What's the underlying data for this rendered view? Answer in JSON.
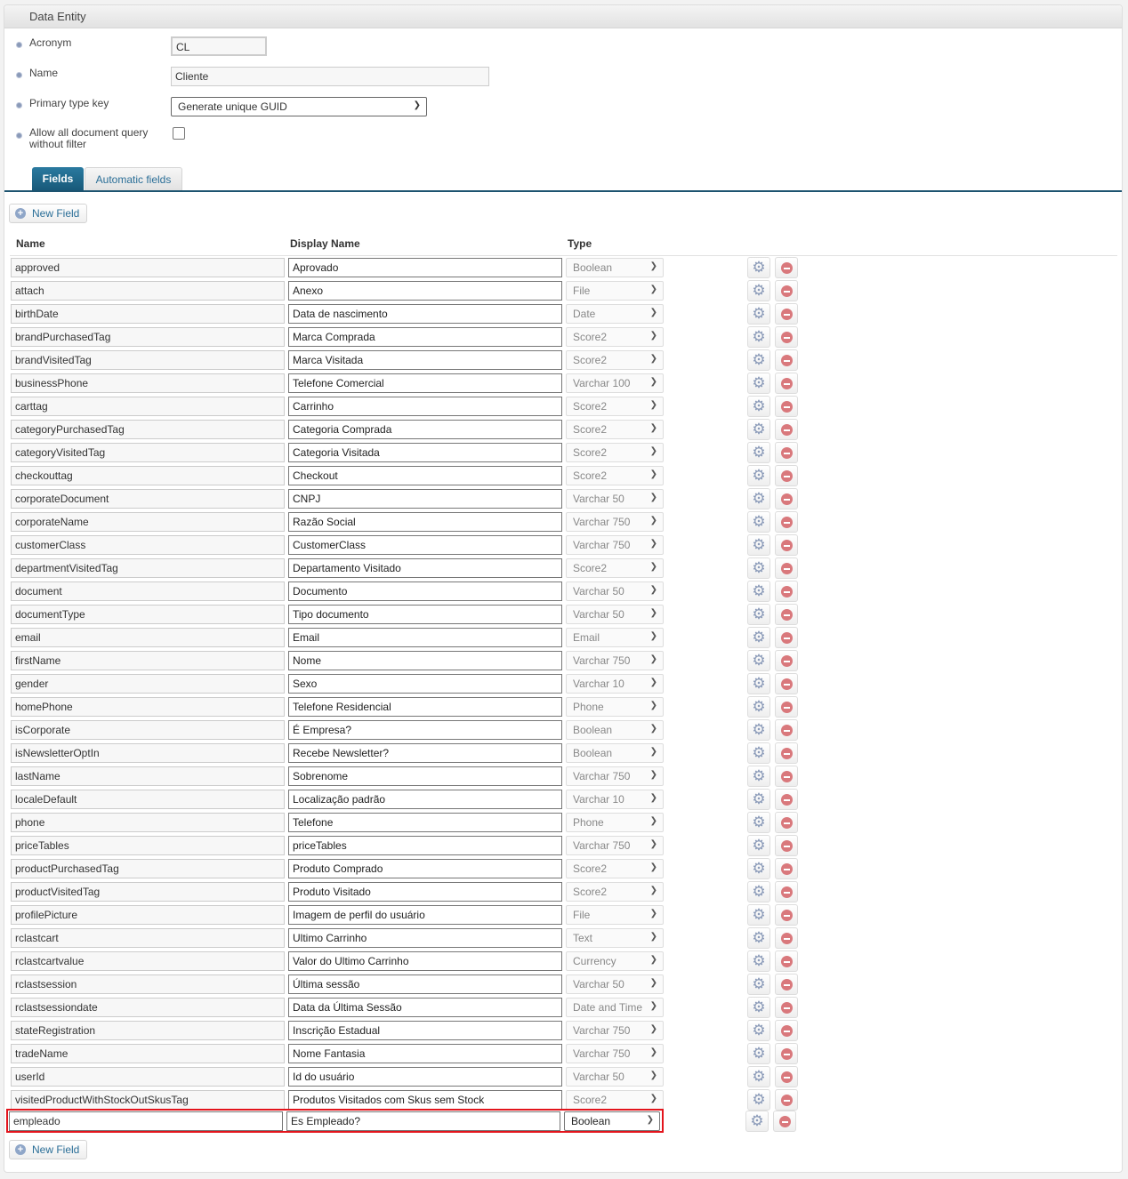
{
  "header": {
    "title": "Data Entity"
  },
  "form": {
    "acronym_label": "Acronym",
    "acronym_value": "CL",
    "name_label": "Name",
    "name_value": "Cliente",
    "primary_key_label": "Primary type key",
    "primary_key_value": "Generate unique GUID",
    "allow_query_label_1": "Allow all document query",
    "allow_query_label_2": "without filter",
    "allow_query_checked": false
  },
  "tabs": [
    {
      "label": "Fields",
      "active": true
    },
    {
      "label": "Automatic fields",
      "active": false
    }
  ],
  "new_field_label": "New Field",
  "columns": {
    "name": "Name",
    "display": "Display Name",
    "type": "Type"
  },
  "fields": [
    [
      "approved",
      "Aprovado",
      "Boolean"
    ],
    [
      "attach",
      "Anexo",
      "File"
    ],
    [
      "birthDate",
      "Data de nascimento",
      "Date"
    ],
    [
      "brandPurchasedTag",
      "Marca Comprada",
      "Score2"
    ],
    [
      "brandVisitedTag",
      "Marca Visitada",
      "Score2"
    ],
    [
      "businessPhone",
      "Telefone Comercial",
      "Varchar 100"
    ],
    [
      "carttag",
      "Carrinho",
      "Score2"
    ],
    [
      "categoryPurchasedTag",
      "Categoria Comprada",
      "Score2"
    ],
    [
      "categoryVisitedTag",
      "Categoria Visitada",
      "Score2"
    ],
    [
      "checkouttag",
      "Checkout",
      "Score2"
    ],
    [
      "corporateDocument",
      "CNPJ",
      "Varchar 50"
    ],
    [
      "corporateName",
      "Razão Social",
      "Varchar 750"
    ],
    [
      "customerClass",
      "CustomerClass",
      "Varchar 750"
    ],
    [
      "departmentVisitedTag",
      "Departamento Visitado",
      "Score2"
    ],
    [
      "document",
      "Documento",
      "Varchar 50"
    ],
    [
      "documentType",
      "Tipo documento",
      "Varchar 50"
    ],
    [
      "email",
      "Email",
      "Email"
    ],
    [
      "firstName",
      "Nome",
      "Varchar 750"
    ],
    [
      "gender",
      "Sexo",
      "Varchar 10"
    ],
    [
      "homePhone",
      "Telefone Residencial",
      "Phone"
    ],
    [
      "isCorporate",
      "É Empresa?",
      "Boolean"
    ],
    [
      "isNewsletterOptIn",
      "Recebe Newsletter?",
      "Boolean"
    ],
    [
      "lastName",
      "Sobrenome",
      "Varchar 750"
    ],
    [
      "localeDefault",
      "Localização padrão",
      "Varchar 10"
    ],
    [
      "phone",
      "Telefone",
      "Phone"
    ],
    [
      "priceTables",
      "priceTables",
      "Varchar 750"
    ],
    [
      "productPurchasedTag",
      "Produto Comprado",
      "Score2"
    ],
    [
      "productVisitedTag",
      "Produto Visitado",
      "Score2"
    ],
    [
      "profilePicture",
      "Imagem de perfil do usuário",
      "File"
    ],
    [
      "rclastcart",
      "Ultimo Carrinho",
      "Text"
    ],
    [
      "rclastcartvalue",
      "Valor do Ultimo Carrinho",
      "Currency"
    ],
    [
      "rclastsession",
      "Última sessão",
      "Varchar 50"
    ],
    [
      "rclastsessiondate",
      "Data da Última Sessão",
      "Date and Time"
    ],
    [
      "stateRegistration",
      "Inscrição Estadual",
      "Varchar 750"
    ],
    [
      "tradeName",
      "Nome Fantasia",
      "Varchar 750"
    ],
    [
      "userId",
      "Id do usuário",
      "Varchar 50"
    ],
    [
      "visitedProductWithStockOutSkusTag",
      "Produtos Visitados com Skus sem Stock",
      "Score2"
    ]
  ],
  "new_row": {
    "name": "empleado",
    "display": "Es Empleado?",
    "type": "Boolean"
  },
  "colors": {
    "accent": "#1d5470",
    "highlight": "#e3141c"
  }
}
